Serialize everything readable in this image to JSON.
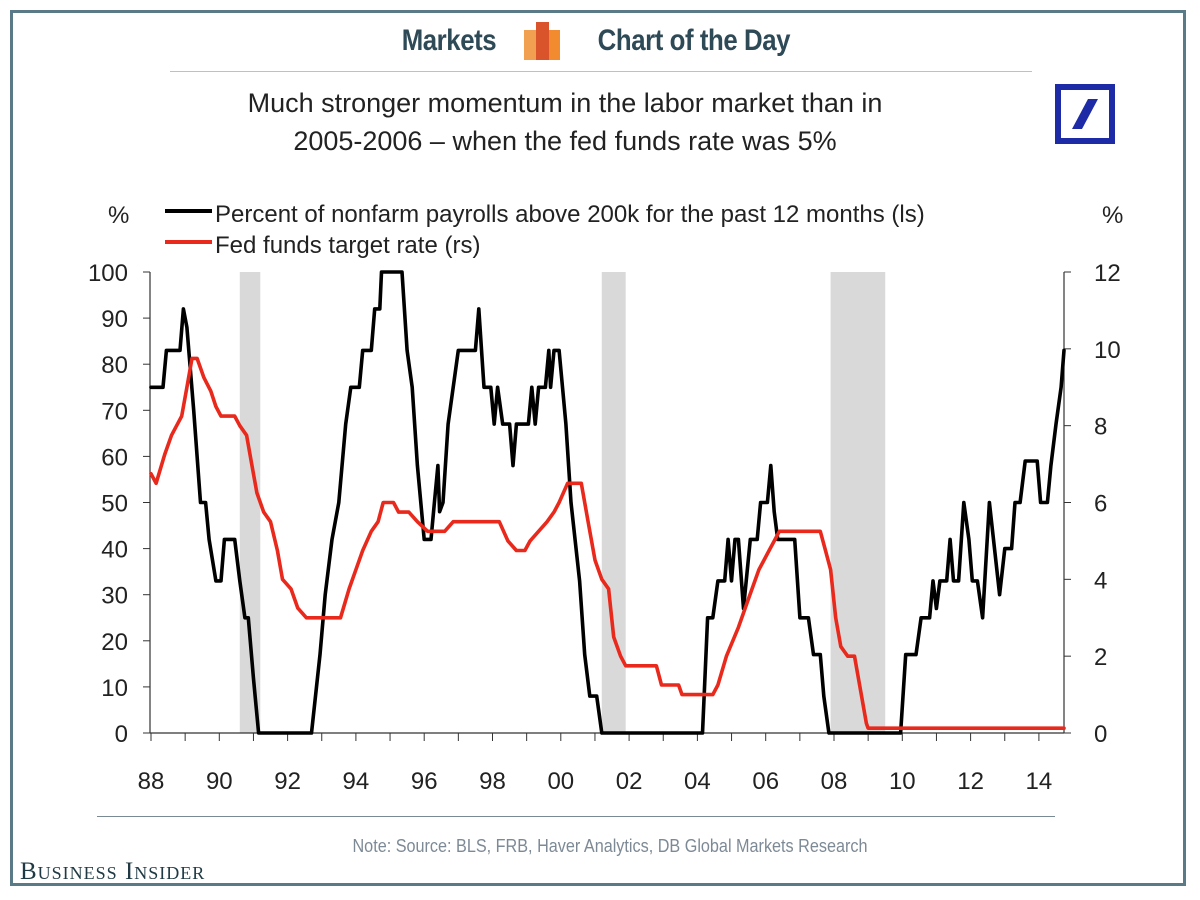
{
  "header": {
    "left_label": "Markets",
    "right_label": "Chart of the Day",
    "logo_colors": [
      "#f0a050",
      "#d9532b",
      "#f28a30"
    ]
  },
  "brand": {
    "publisher": "Business Insider",
    "bank_logo": "deutsche-bank-logo",
    "bank_color": "#1d2ca6",
    "frame_color": "#5a7a88"
  },
  "chart_data": {
    "type": "line",
    "title": "Much stronger momentum in the labor market than in 2005-2006 – when the fed funds rate was 5%",
    "title_lines": [
      "Much stronger momentum in the labor market than in",
      "2005-2006 – when the fed funds rate was 5%"
    ],
    "ylabel_left": "%",
    "ylabel_right": "%",
    "xlabel": "",
    "x_range": [
      1988,
      2014.75
    ],
    "ylim_left": [
      0,
      100
    ],
    "ylim_right": [
      0,
      12
    ],
    "x_tick_labels": [
      "88",
      "90",
      "92",
      "94",
      "96",
      "98",
      "00",
      "02",
      "04",
      "06",
      "08",
      "10",
      "12",
      "14"
    ],
    "x_tick_years": [
      1988,
      1990,
      1992,
      1994,
      1996,
      1998,
      2000,
      2002,
      2004,
      2006,
      2008,
      2010,
      2012,
      2014
    ],
    "y_left_ticks": [
      0,
      10,
      20,
      30,
      40,
      50,
      60,
      70,
      80,
      90,
      100
    ],
    "y_right_ticks": [
      0,
      2,
      4,
      6,
      8,
      10,
      12
    ],
    "grid": false,
    "legend_position": "top",
    "recessions": [
      [
        1990.6,
        1991.2
      ],
      [
        2001.2,
        2001.9
      ],
      [
        2007.9,
        2009.5
      ]
    ],
    "recession_color": "#d9d9d9",
    "series": [
      {
        "name": "Percent of nonfarm payrolls above 200k for the past 12 months (ls)",
        "axis": "left",
        "color": "#000000",
        "points": [
          [
            1988.0,
            75
          ],
          [
            1988.35,
            75
          ],
          [
            1988.45,
            83
          ],
          [
            1988.85,
            83
          ],
          [
            1988.95,
            92
          ],
          [
            1989.05,
            88
          ],
          [
            1989.25,
            70
          ],
          [
            1989.45,
            50
          ],
          [
            1989.6,
            50
          ],
          [
            1989.7,
            42
          ],
          [
            1989.9,
            33
          ],
          [
            1990.05,
            33
          ],
          [
            1990.15,
            42
          ],
          [
            1990.45,
            42
          ],
          [
            1990.6,
            33
          ],
          [
            1990.75,
            25
          ],
          [
            1990.85,
            25
          ],
          [
            1991.0,
            12
          ],
          [
            1991.15,
            0
          ],
          [
            1992.7,
            0
          ],
          [
            1992.95,
            17
          ],
          [
            1993.1,
            30
          ],
          [
            1993.3,
            42
          ],
          [
            1993.5,
            50
          ],
          [
            1993.7,
            67
          ],
          [
            1993.85,
            75
          ],
          [
            1994.1,
            75
          ],
          [
            1994.2,
            83
          ],
          [
            1994.45,
            83
          ],
          [
            1994.55,
            92
          ],
          [
            1994.7,
            92
          ],
          [
            1994.75,
            100
          ],
          [
            1995.35,
            100
          ],
          [
            1995.5,
            83
          ],
          [
            1995.65,
            75
          ],
          [
            1995.8,
            58
          ],
          [
            1996.0,
            42
          ],
          [
            1996.2,
            42
          ],
          [
            1996.3,
            50
          ],
          [
            1996.4,
            58
          ],
          [
            1996.45,
            48
          ],
          [
            1996.55,
            50
          ],
          [
            1996.7,
            67
          ],
          [
            1996.85,
            75
          ],
          [
            1997.0,
            83
          ],
          [
            1997.5,
            83
          ],
          [
            1997.6,
            92
          ],
          [
            1997.75,
            75
          ],
          [
            1997.95,
            75
          ],
          [
            1998.05,
            67
          ],
          [
            1998.15,
            75
          ],
          [
            1998.3,
            67
          ],
          [
            1998.5,
            67
          ],
          [
            1998.6,
            58
          ],
          [
            1998.7,
            67
          ],
          [
            1999.05,
            67
          ],
          [
            1999.15,
            75
          ],
          [
            1999.25,
            67
          ],
          [
            1999.35,
            75
          ],
          [
            1999.55,
            75
          ],
          [
            1999.65,
            83
          ],
          [
            1999.7,
            75
          ],
          [
            1999.8,
            83
          ],
          [
            1999.95,
            83
          ],
          [
            2000.15,
            67
          ],
          [
            2000.3,
            50
          ],
          [
            2000.55,
            33
          ],
          [
            2000.7,
            17
          ],
          [
            2000.85,
            8
          ],
          [
            2001.05,
            8
          ],
          [
            2001.2,
            0
          ],
          [
            2004.15,
            0
          ],
          [
            2004.3,
            25
          ],
          [
            2004.45,
            25
          ],
          [
            2004.6,
            33
          ],
          [
            2004.8,
            33
          ],
          [
            2004.9,
            42
          ],
          [
            2005.0,
            33
          ],
          [
            2005.1,
            42
          ],
          [
            2005.2,
            42
          ],
          [
            2005.35,
            27
          ],
          [
            2005.55,
            42
          ],
          [
            2005.75,
            42
          ],
          [
            2005.85,
            50
          ],
          [
            2006.05,
            50
          ],
          [
            2006.15,
            58
          ],
          [
            2006.25,
            48
          ],
          [
            2006.35,
            42
          ],
          [
            2006.85,
            42
          ],
          [
            2007.0,
            25
          ],
          [
            2007.25,
            25
          ],
          [
            2007.4,
            17
          ],
          [
            2007.6,
            17
          ],
          [
            2007.7,
            8
          ],
          [
            2007.85,
            0
          ],
          [
            2009.95,
            0
          ],
          [
            2010.1,
            17
          ],
          [
            2010.4,
            17
          ],
          [
            2010.55,
            25
          ],
          [
            2010.8,
            25
          ],
          [
            2010.9,
            33
          ],
          [
            2011.0,
            27
          ],
          [
            2011.1,
            33
          ],
          [
            2011.3,
            33
          ],
          [
            2011.4,
            42
          ],
          [
            2011.5,
            33
          ],
          [
            2011.65,
            33
          ],
          [
            2011.8,
            50
          ],
          [
            2011.95,
            42
          ],
          [
            2012.05,
            33
          ],
          [
            2012.2,
            33
          ],
          [
            2012.35,
            25
          ],
          [
            2012.55,
            50
          ],
          [
            2012.7,
            40
          ],
          [
            2012.85,
            30
          ],
          [
            2013.0,
            40
          ],
          [
            2013.2,
            40
          ],
          [
            2013.3,
            50
          ],
          [
            2013.45,
            50
          ],
          [
            2013.6,
            59
          ],
          [
            2013.95,
            59
          ],
          [
            2014.05,
            50
          ],
          [
            2014.25,
            50
          ],
          [
            2014.35,
            58
          ],
          [
            2014.5,
            67
          ],
          [
            2014.65,
            75
          ],
          [
            2014.85,
            83
          ],
          [
            2015.0,
            83
          ]
        ]
      },
      {
        "name": "Fed funds target rate (rs)",
        "axis": "right",
        "color": "#e8291c",
        "points": [
          [
            1988.0,
            6.75
          ],
          [
            1988.15,
            6.5
          ],
          [
            1988.4,
            7.25
          ],
          [
            1988.6,
            7.75
          ],
          [
            1988.75,
            8.0
          ],
          [
            1988.9,
            8.25
          ],
          [
            1989.05,
            9.0
          ],
          [
            1989.2,
            9.75
          ],
          [
            1989.35,
            9.75
          ],
          [
            1989.55,
            9.25
          ],
          [
            1989.75,
            8.9
          ],
          [
            1989.9,
            8.5
          ],
          [
            1990.05,
            8.25
          ],
          [
            1990.45,
            8.25
          ],
          [
            1990.6,
            8.0
          ],
          [
            1990.8,
            7.75
          ],
          [
            1990.95,
            7.0
          ],
          [
            1991.1,
            6.25
          ],
          [
            1991.3,
            5.75
          ],
          [
            1991.5,
            5.5
          ],
          [
            1991.7,
            4.75
          ],
          [
            1991.85,
            4.0
          ],
          [
            1992.1,
            3.75
          ],
          [
            1992.3,
            3.25
          ],
          [
            1992.55,
            3.0
          ],
          [
            1993.0,
            3.0
          ],
          [
            1993.55,
            3.0
          ],
          [
            1993.8,
            3.75
          ],
          [
            1994.0,
            4.25
          ],
          [
            1994.2,
            4.75
          ],
          [
            1994.45,
            5.25
          ],
          [
            1994.65,
            5.5
          ],
          [
            1994.8,
            6.0
          ],
          [
            1995.1,
            6.0
          ],
          [
            1995.25,
            5.75
          ],
          [
            1995.55,
            5.75
          ],
          [
            1995.8,
            5.5
          ],
          [
            1996.1,
            5.25
          ],
          [
            1996.6,
            5.25
          ],
          [
            1996.85,
            5.5
          ],
          [
            1997.2,
            5.5
          ],
          [
            1998.2,
            5.5
          ],
          [
            1998.45,
            5.0
          ],
          [
            1998.7,
            4.75
          ],
          [
            1998.95,
            4.75
          ],
          [
            1999.1,
            5.0
          ],
          [
            1999.35,
            5.25
          ],
          [
            1999.6,
            5.5
          ],
          [
            1999.8,
            5.75
          ],
          [
            1999.95,
            6.0
          ],
          [
            2000.2,
            6.5
          ],
          [
            2000.4,
            6.5
          ],
          [
            2000.6,
            6.5
          ],
          [
            2000.8,
            5.5
          ],
          [
            2001.0,
            4.5
          ],
          [
            2001.2,
            4.0
          ],
          [
            2001.4,
            3.75
          ],
          [
            2001.55,
            2.5
          ],
          [
            2001.75,
            2.0
          ],
          [
            2001.9,
            1.75
          ],
          [
            2002.8,
            1.75
          ],
          [
            2002.95,
            1.25
          ],
          [
            2003.45,
            1.25
          ],
          [
            2003.55,
            1.0
          ],
          [
            2004.45,
            1.0
          ],
          [
            2004.6,
            1.25
          ],
          [
            2004.85,
            2.0
          ],
          [
            2005.2,
            2.75
          ],
          [
            2005.5,
            3.5
          ],
          [
            2005.8,
            4.25
          ],
          [
            2006.1,
            4.75
          ],
          [
            2006.4,
            5.25
          ],
          [
            2007.6,
            5.25
          ],
          [
            2007.75,
            4.75
          ],
          [
            2007.9,
            4.25
          ],
          [
            2008.05,
            3.0
          ],
          [
            2008.2,
            2.25
          ],
          [
            2008.4,
            2.0
          ],
          [
            2008.6,
            2.0
          ],
          [
            2008.8,
            1.0
          ],
          [
            2008.95,
            0.25
          ],
          [
            2009.0,
            0.125
          ],
          [
            2014.75,
            0.125
          ]
        ]
      }
    ]
  },
  "note": "Note: Source: BLS, FRB, Haver Analytics, DB Global Markets Research"
}
